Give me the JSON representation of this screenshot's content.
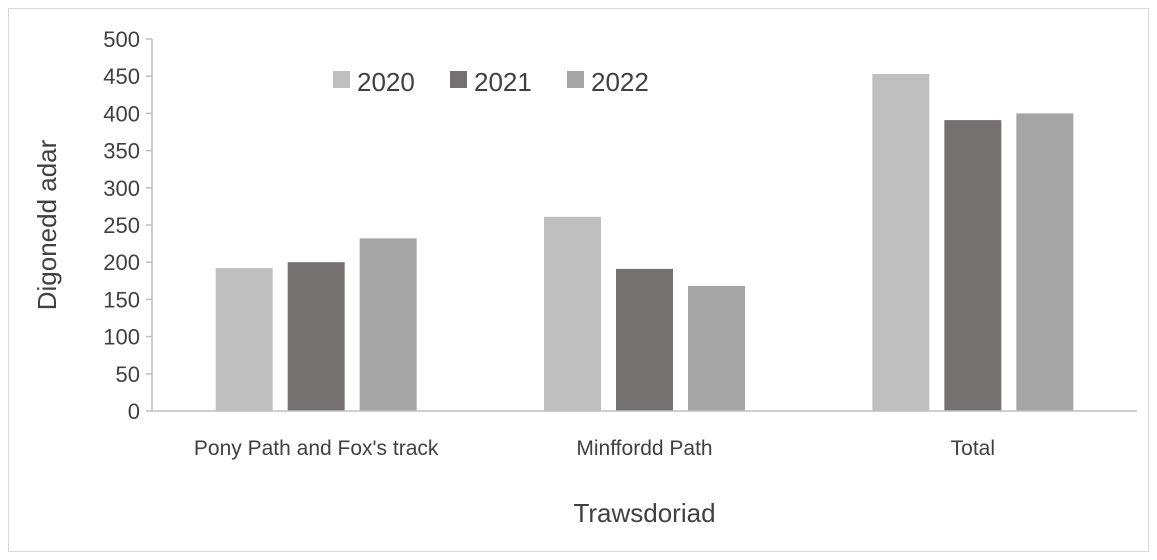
{
  "chart_data": {
    "type": "bar",
    "title": "",
    "xlabel": "Trawsdoriad",
    "ylabel": "Digonedd adar",
    "ylim": [
      0,
      500
    ],
    "yticks": [
      0,
      50,
      100,
      150,
      200,
      250,
      300,
      350,
      400,
      450,
      500
    ],
    "categories": [
      "Pony Path and Fox's track",
      "Minffordd Path",
      "Total"
    ],
    "series": [
      {
        "name": "2020",
        "color": "#bfbfbf",
        "values": [
          192,
          261,
          453
        ]
      },
      {
        "name": "2021",
        "color": "#767171",
        "values": [
          200,
          191,
          391
        ]
      },
      {
        "name": "2022",
        "color": "#a5a5a5",
        "values": [
          232,
          168,
          400
        ]
      }
    ],
    "grid": false,
    "legend_position": "top-left inside plot"
  }
}
